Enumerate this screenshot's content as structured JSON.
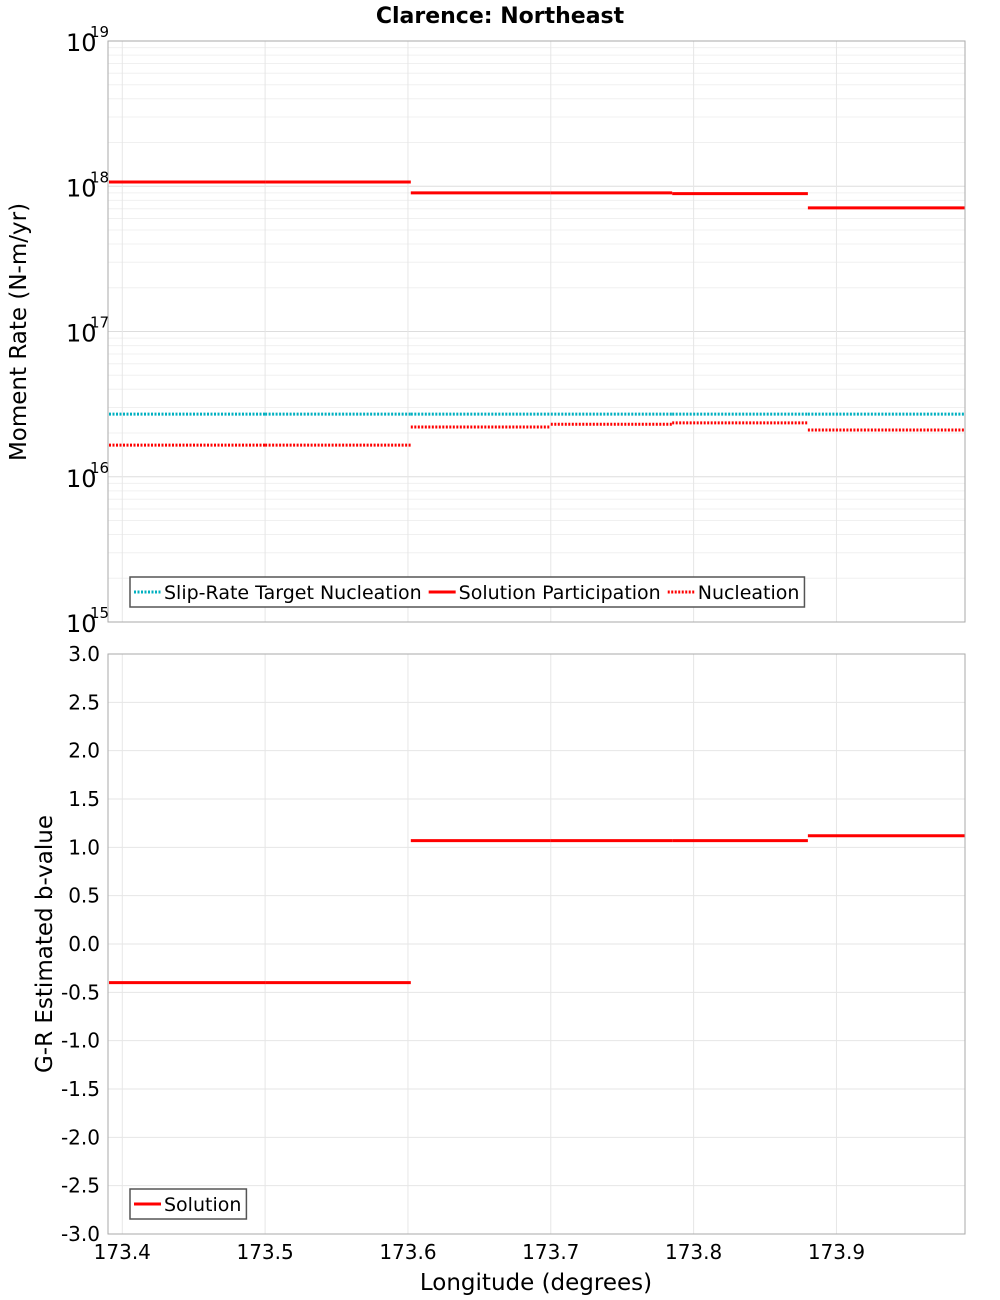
{
  "chart_data": {
    "title": "Clarence: Northeast",
    "xlabel": "Longitude (degrees)",
    "xlim": [
      173.39,
      173.99
    ],
    "x_ticks": [
      "173.4",
      "173.5",
      "173.6",
      "173.7",
      "173.8",
      "173.9"
    ],
    "x_tick_values": [
      173.4,
      173.5,
      173.6,
      173.7,
      173.8,
      173.9
    ],
    "panels": [
      {
        "type": "line",
        "ylabel": "Moment Rate (N-m/yr)",
        "y_scale": "log",
        "ylim": [
          1000000000000000.0,
          1e+19
        ],
        "y_tick_base": "10",
        "y_tick_exponents": [
          "15",
          "16",
          "17",
          "18",
          "19"
        ],
        "grid": true,
        "legend_position": "bottom-left",
        "bins": [
          173.39,
          173.5,
          173.602,
          173.7,
          173.785,
          173.88,
          173.99
        ],
        "series": [
          {
            "name": "Slip-Rate Target Nucleation",
            "style": "dotted",
            "color": "#00b0c0",
            "values": [
              2.7e+16,
              2.7e+16,
              2.7e+16,
              2.7e+16,
              2.7e+16,
              2.7e+16
            ]
          },
          {
            "name": "Solution Participation",
            "style": "solid",
            "color": "#ff0000",
            "values": [
              1.07e+18,
              1.07e+18,
              9e+17,
              9e+17,
              8.9e+17,
              7.1e+17
            ]
          },
          {
            "name": "Nucleation",
            "style": "dotted",
            "color": "#ff0000",
            "values": [
              1.65e+16,
              1.65e+16,
              2.2e+16,
              2.3e+16,
              2.35e+16,
              2.1e+16
            ]
          }
        ]
      },
      {
        "type": "line",
        "ylabel": "G-R Estimated b-value",
        "y_scale": "linear",
        "ylim": [
          -3.0,
          3.0
        ],
        "y_ticks": [
          "-3.0",
          "-2.5",
          "-2.0",
          "-1.5",
          "-1.0",
          "-0.5",
          "0.0",
          "0.5",
          "1.0",
          "1.5",
          "2.0",
          "2.5",
          "3.0"
        ],
        "y_tick_values": [
          -3.0,
          -2.5,
          -2.0,
          -1.5,
          -1.0,
          -0.5,
          0.0,
          0.5,
          1.0,
          1.5,
          2.0,
          2.5,
          3.0
        ],
        "grid": true,
        "legend_position": "bottom-left",
        "bins": [
          173.39,
          173.5,
          173.602,
          173.7,
          173.785,
          173.88,
          173.99
        ],
        "series": [
          {
            "name": "Solution",
            "style": "solid",
            "color": "#ff0000",
            "values": [
              -0.4,
              -0.4,
              1.07,
              1.07,
              1.07,
              1.12
            ]
          }
        ]
      }
    ]
  }
}
